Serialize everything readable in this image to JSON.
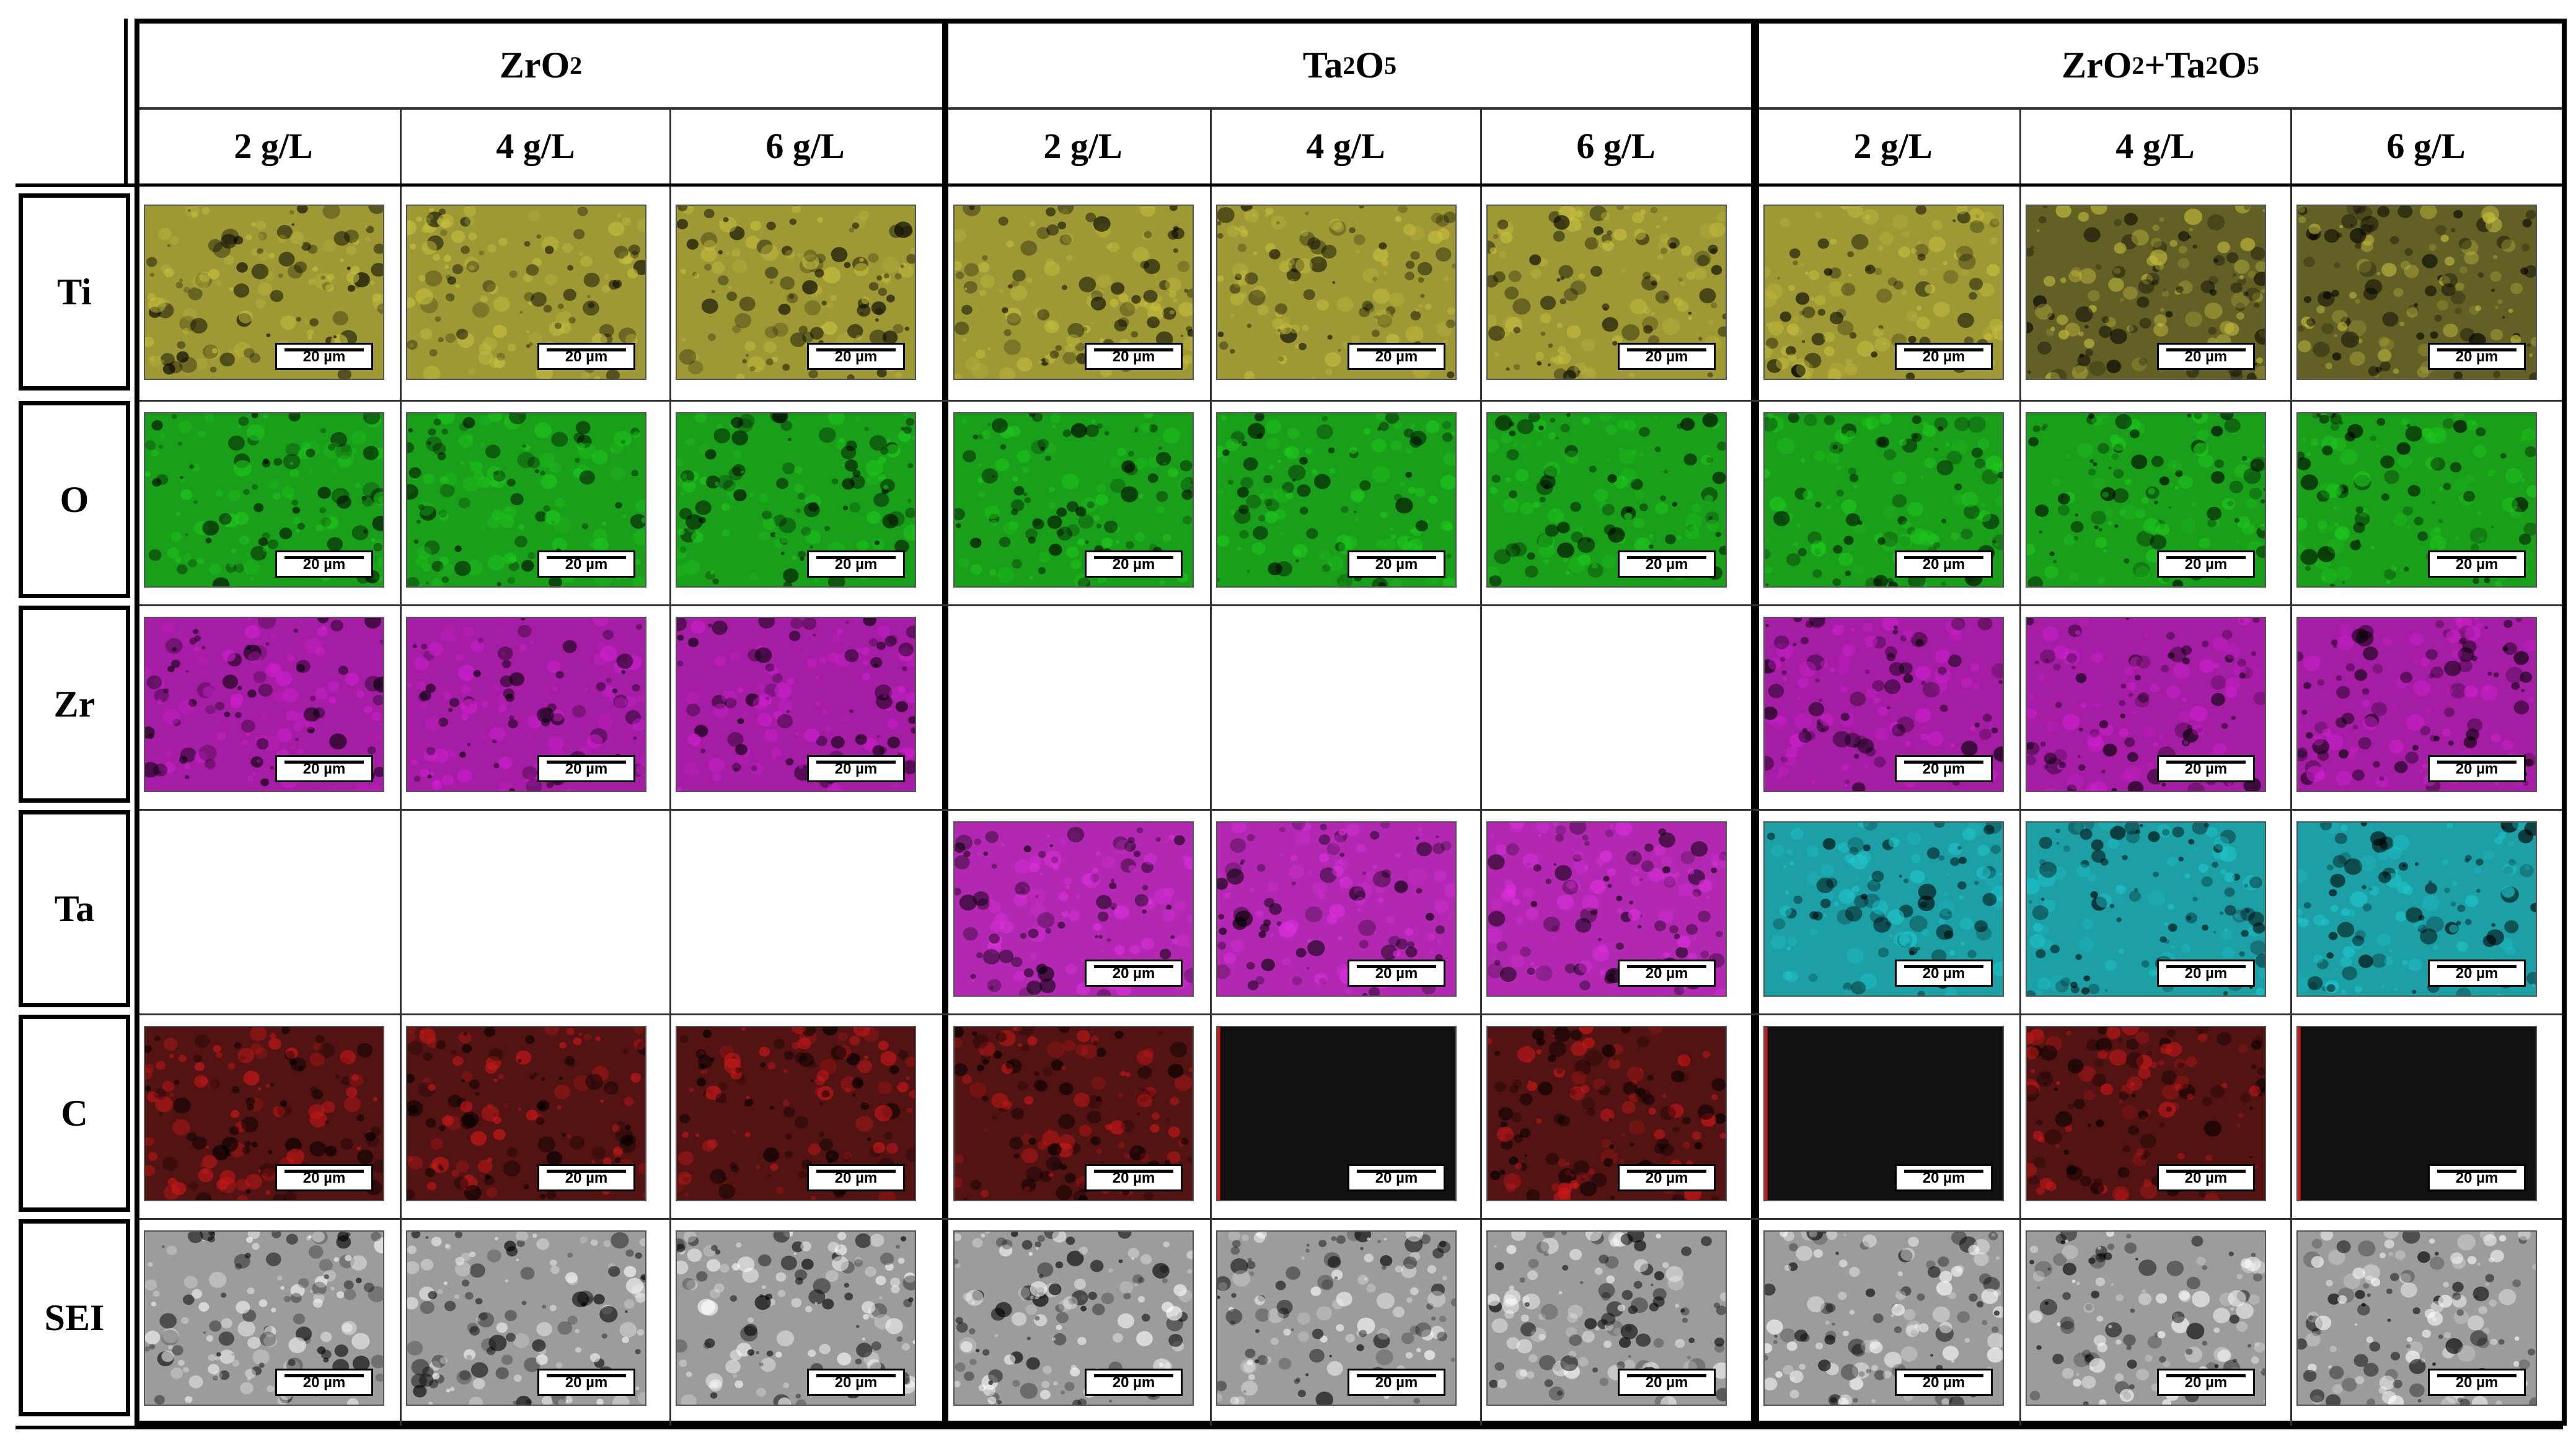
{
  "groups": [
    {
      "key": "zro2",
      "base": "ZrO",
      "sub1": "2",
      "mid": "",
      "sub2": "",
      "concentrations": [
        "2 g/L",
        "4 g/L",
        "6 g/L"
      ]
    },
    {
      "key": "ta2o5",
      "base": "Ta",
      "sub1": "2",
      "mid": "O",
      "sub2": "5",
      "concentrations": [
        "2 g/L",
        "4 g/L",
        "6 g/L"
      ]
    },
    {
      "key": "mix",
      "base": "ZrO",
      "sub1": "2",
      "mid": "+Ta",
      "sub2": "2",
      "tail": "O",
      "sub3": "5",
      "concentrations": [
        "2 g/L",
        "4 g/L",
        "6 g/L"
      ]
    }
  ],
  "elements": [
    "Ti",
    "O",
    "Zr",
    "Ta",
    "C",
    "SEI"
  ],
  "scale_bar_label": "20 µm",
  "map_colors": {
    "Ti": "#c8c040",
    "O": "#1ec81e",
    "Zr": "#d020d0",
    "Ta_ta2o5": "#e030e0",
    "Ta_mix": "#20c8d0",
    "C": "#d01818",
    "SEI": "#b8b8b8"
  },
  "panels": [
    [
      "map",
      "map",
      "map",
      "map",
      "map",
      "map",
      "map",
      "map",
      "map"
    ],
    [
      "map",
      "map",
      "map",
      "map",
      "map",
      "map",
      "map",
      "map",
      "map"
    ],
    [
      "map",
      "map",
      "map",
      "empty",
      "empty",
      "empty",
      "map",
      "map",
      "map"
    ],
    [
      "empty",
      "empty",
      "empty",
      "map",
      "map",
      "map",
      "map",
      "map",
      "map"
    ],
    [
      "map",
      "map",
      "map",
      "map",
      "map",
      "map",
      "map",
      "map",
      "map"
    ],
    [
      "map",
      "map",
      "map",
      "map",
      "map",
      "map",
      "map",
      "map",
      "map"
    ]
  ]
}
